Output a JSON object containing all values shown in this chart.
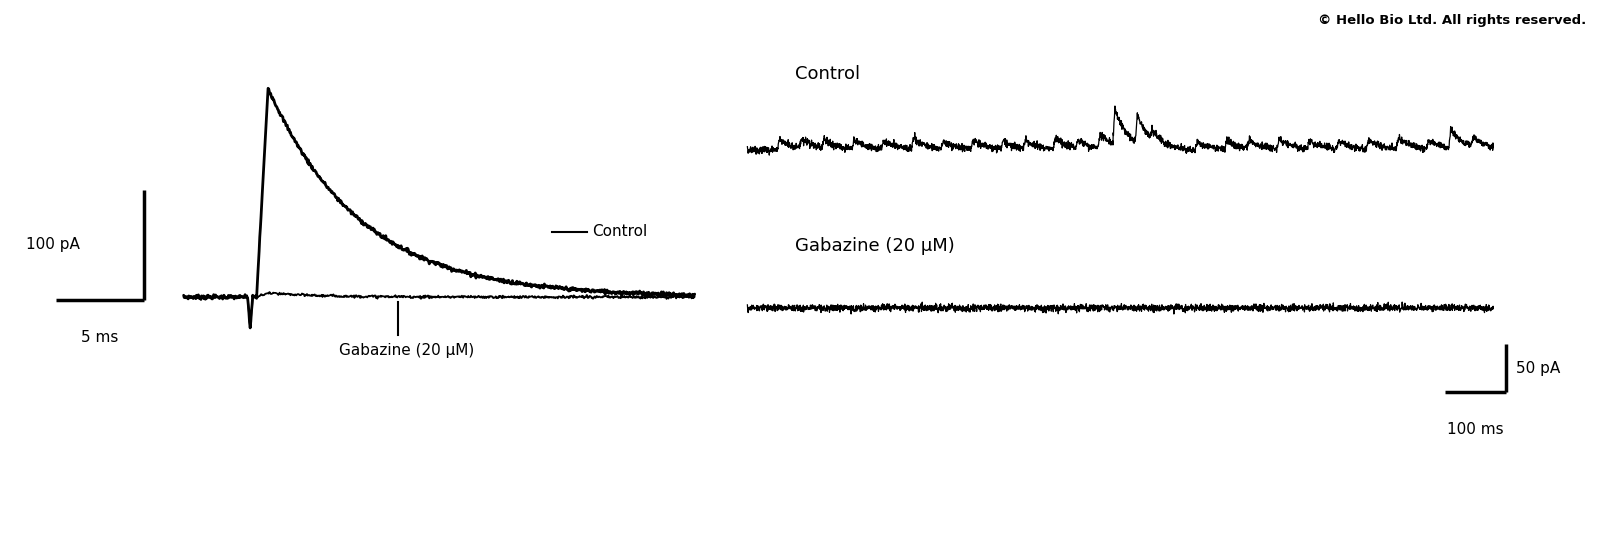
{
  "fig_width": 15.97,
  "fig_height": 5.45,
  "bg_color": "#ffffff",
  "copyright_text": "© Hello Bio Ltd. All rights reserved.",
  "copyright_fontsize": 9.5,
  "left_panel": {
    "label_control": "Control",
    "label_gabazine": "Gabazine (20 μM)",
    "scalebar_y_label": "100 pA",
    "scalebar_x_label": "5 ms"
  },
  "right_panel": {
    "label_control": "Control",
    "label_gabazine": "Gabazine (20 μM)",
    "scalebar_y_label": "50 pA",
    "scalebar_x_label": "100 ms"
  }
}
